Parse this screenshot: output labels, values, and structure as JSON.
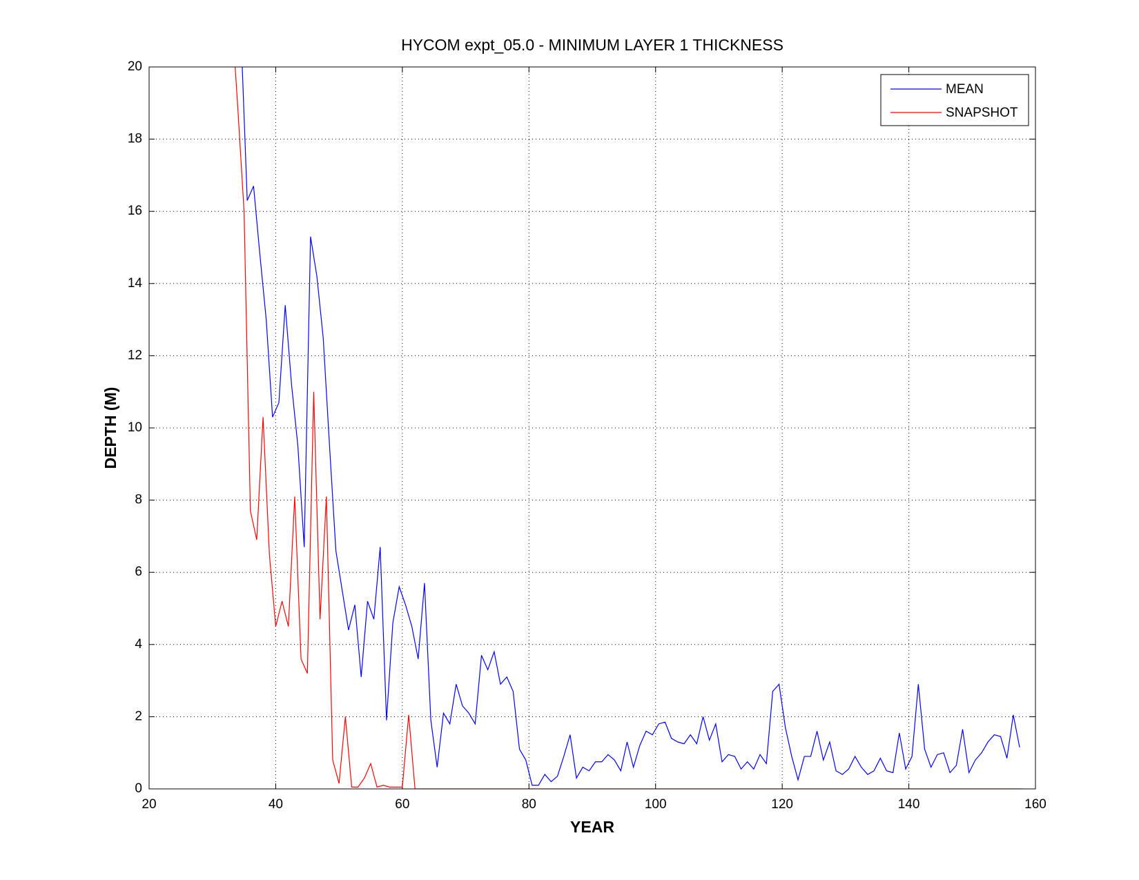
{
  "chart_data": {
    "type": "line",
    "title": "HYCOM expt_05.0 - MINIMUM LAYER 1 THICKNESS",
    "x_label": "YEAR",
    "y_label": "DEPTH (M)",
    "xlim": [
      20,
      160
    ],
    "xticks": [
      20,
      40,
      60,
      80,
      100,
      120,
      140,
      160
    ],
    "ylim": [
      0,
      20
    ],
    "yticks": [
      0,
      2,
      4,
      6,
      8,
      10,
      12,
      14,
      16,
      18,
      20
    ],
    "grid": true,
    "legend": "upper right",
    "series": [
      {
        "name": "MEAN",
        "color": "#0000ff",
        "x": [
          34.5,
          35.5,
          36.5,
          37.5,
          38.5,
          39.5,
          40.5,
          41.5,
          42.5,
          43.5,
          44.5,
          45.5,
          46.5,
          47.5,
          48.5,
          49.5,
          50.5,
          51.5,
          52.5,
          53.5,
          54.5,
          55.5,
          56.5,
          57.5,
          58.5,
          59.5,
          60.5,
          61.5,
          62.5,
          63.5,
          64.5,
          65.5,
          66.5,
          67.5,
          68.5,
          69.5,
          70.5,
          71.5,
          72.5,
          73.5,
          74.5,
          75.5,
          76.5,
          77.5,
          78.5,
          79.5,
          80.5,
          81.5,
          82.5,
          83.5,
          84.5,
          85.5,
          86.5,
          87.5,
          88.5,
          89.5,
          90.5,
          91.5,
          92.5,
          93.5,
          94.5,
          95.5,
          96.5,
          97.5,
          98.5,
          99.5,
          100.5,
          101.5,
          102.5,
          103.5,
          104.5,
          105.5,
          106.5,
          107.5,
          108.5,
          109.5,
          110.5,
          111.5,
          112.5,
          113.5,
          114.5,
          115.5,
          116.5,
          117.5,
          118.5,
          119.5,
          120.5,
          121.5,
          122.5,
          123.5,
          124.5,
          125.5,
          126.5,
          127.5,
          128.5,
          129.5,
          130.5,
          131.5,
          132.5,
          133.5,
          134.5,
          135.5,
          136.5,
          137.5,
          138.5,
          139.5,
          140.5,
          141.5,
          142.5,
          143.5,
          144.5,
          145.5,
          146.5,
          147.5,
          148.5,
          149.5,
          150.5,
          151.5,
          152.5,
          153.5,
          154.5,
          155.5,
          156.5,
          157.5
        ],
        "values": [
          21,
          16.3,
          16.7,
          14.8,
          13,
          10.3,
          10.7,
          13.4,
          11.2,
          9.5,
          6.7,
          15.3,
          14.2,
          12.5,
          9.5,
          6.6,
          5.5,
          4.4,
          5.1,
          3.1,
          5.2,
          4.7,
          6.7,
          1.9,
          4.6,
          5.6,
          5.1,
          4.5,
          3.6,
          5.7,
          1.9,
          0.6,
          2.1,
          1.8,
          2.9,
          2.3,
          2.1,
          1.8,
          3.7,
          3.3,
          3.8,
          2.9,
          3.1,
          2.7,
          1.1,
          0.8,
          0.1,
          0.1,
          0.4,
          0.2,
          0.35,
          0.9,
          1.5,
          0.3,
          0.6,
          0.5,
          0.75,
          0.75,
          0.95,
          0.8,
          0.5,
          1.3,
          0.6,
          1.2,
          1.6,
          1.5,
          1.8,
          1.85,
          1.4,
          1.3,
          1.25,
          1.5,
          1.25,
          2.0,
          1.35,
          1.8,
          0.75,
          0.95,
          0.9,
          0.55,
          0.75,
          0.55,
          0.95,
          0.7,
          2.7,
          2.9,
          1.7,
          0.9,
          0.25,
          0.9,
          0.9,
          1.6,
          0.8,
          1.3,
          0.5,
          0.4,
          0.55,
          0.9,
          0.6,
          0.4,
          0.5,
          0.85,
          0.5,
          0.45,
          1.55,
          0.55,
          0.9,
          2.9,
          1.1,
          0.6,
          0.95,
          1.0,
          0.45,
          0.65,
          1.65,
          0.45,
          0.8,
          1.0,
          1.3,
          1.5,
          1.45,
          0.85,
          2.05,
          1.15
        ]
      },
      {
        "name": "SNAPSHOT",
        "color": "#ff0000",
        "x": [
          33,
          34,
          35,
          36,
          37,
          38,
          39,
          40,
          41,
          42,
          43,
          44,
          45,
          46,
          47,
          48,
          49,
          50,
          51,
          52,
          53,
          54,
          55,
          56,
          57,
          58,
          59,
          60,
          61,
          62,
          63,
          64,
          65,
          66,
          67,
          68,
          69,
          70,
          71,
          72,
          73,
          74,
          75,
          76,
          77,
          78,
          79,
          80,
          81,
          82,
          83,
          84,
          85,
          86,
          87,
          88,
          89,
          90,
          91,
          92,
          93,
          94,
          95,
          96,
          97,
          98,
          99,
          100,
          101,
          102,
          103,
          104,
          105,
          106,
          107,
          108,
          109,
          110,
          111,
          112,
          113,
          114,
          115,
          116,
          117,
          118,
          119,
          120,
          121,
          122,
          123,
          124,
          125,
          126,
          127,
          128,
          129,
          130,
          131,
          132,
          133,
          134,
          135,
          136,
          137,
          138,
          139,
          140,
          141,
          142,
          143,
          144,
          145,
          146,
          147,
          148,
          149,
          150,
          151,
          152,
          153,
          154,
          155,
          156,
          157,
          158
        ],
        "values": [
          21.6,
          18.9,
          16,
          7.7,
          6.9,
          10.3,
          6.5,
          4.5,
          5.2,
          4.5,
          8.1,
          3.6,
          3.2,
          11,
          4.7,
          8.1,
          0.8,
          0.15,
          2.0,
          0.05,
          0.05,
          0.3,
          0.7,
          0.05,
          0.1,
          0.05,
          0.05,
          0.05,
          2.05,
          0,
          0,
          0,
          0,
          0,
          0,
          0,
          0,
          0,
          0,
          0,
          0,
          0,
          0,
          0,
          0,
          0,
          0,
          0,
          0,
          0,
          0,
          0,
          0,
          0,
          0,
          0,
          0,
          0,
          0,
          0,
          0,
          0,
          0,
          0,
          0,
          0,
          0,
          0,
          0,
          0,
          0,
          0,
          0,
          0,
          0,
          0,
          0,
          0,
          0,
          0,
          0,
          0,
          0,
          0,
          0,
          0,
          0,
          0,
          0,
          0,
          0,
          0,
          0,
          0,
          0,
          0,
          0,
          0,
          0,
          0,
          0,
          0,
          0,
          0,
          0,
          0,
          0,
          0,
          0,
          0,
          0,
          0,
          0,
          0,
          0,
          0,
          0,
          0,
          0,
          0,
          0,
          0,
          0,
          0,
          0,
          0
        ]
      }
    ]
  }
}
